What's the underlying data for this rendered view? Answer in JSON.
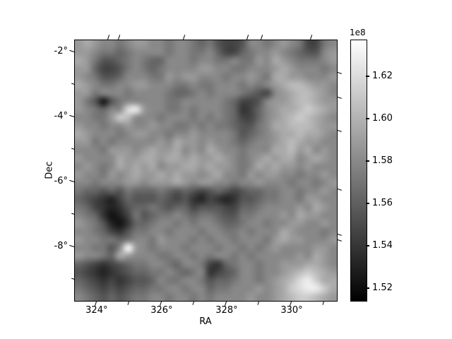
{
  "figure": {
    "background": "#ffffff"
  },
  "chart_data": {
    "type": "heatmap",
    "title": "",
    "xlabel": "RA",
    "ylabel": "Dec",
    "grid_on": false,
    "x_axis": {
      "tick_labels": [
        "324°",
        "326°",
        "328°",
        "330°"
      ],
      "tick_values": [
        324,
        326,
        328,
        330
      ],
      "minor_tick_values": [
        325,
        327,
        329,
        331
      ],
      "range": [
        323.33,
        331.39
      ],
      "unit": "deg RA"
    },
    "y_axis": {
      "tick_labels": [
        "-2°",
        "-4°",
        "-6°",
        "-8°"
      ],
      "tick_values": [
        -2,
        -4,
        -6,
        -8
      ],
      "minor_tick_values": [
        -3,
        -5,
        -7,
        -9
      ],
      "range": [
        -9.67,
        -1.65
      ],
      "unit": "deg Dec"
    },
    "colorbar": {
      "offset_label": "1e8",
      "tick_labels": [
        "1.62",
        "1.60",
        "1.58",
        "1.56",
        "1.54",
        "1.52"
      ],
      "tick_values_1e8": [
        1.62,
        1.6,
        1.58,
        1.56,
        1.54,
        1.52
      ],
      "vmin_1e8": 1.514,
      "vmax_1e8": 1.637,
      "colormap": "gray",
      "label_side": "right"
    },
    "values_grid": {
      "rows": 32,
      "cols": 32,
      "encoding": "one hex digit per cell, 0-15; value_1e8 = vmin_1e8 + d/15*(vmax_1e8-vmin_1e8); row 0 = top (Dec -1.65°), col 0 = left (RA 323.33°)",
      "data": [
        "9a988789988788767544588789874478",
        "99877678888788778644678898765589",
        "a975567876688878877877 98a9877789",
        "996445787678888998877888 9a988878",
        "9875568887798998887889 87aa998889",
        "a9877889988877877888787 89abba998",
        "997888788887667878887654 89abba98",
        "975157888887788888764458 99abba99",
        "987688de98877878887634689aabcba9",
        "88779cb888788878787644689abcba98",
        "988788988988778787765578aabbba99",
        "a98887899887889888875678 9aabaa98",
        "997878888898a998988767889aba9988",
        "888799989a99a898a9887888aab9a898",
        "98888a99aa9aa9a99a98789a9aa89a98",
        "89878a9a9a899aa9a99878a9a9989888",
        "9887989a99a9a9989a88798998878898",
        "887888998999a98998878898 88788789",
        "76656576667656545654566778878898",
        "65432465556545324323556778879988",
        "76432356676566455544667888898a98",
        "87631247567787677655778 8898a9988",
        "98752136678878788766788788998898",
        "887643577887888788778788 8a988878",
        "988776788798887878878887 9a998889",
        "887758f98788878887887878 98888998",
        "98876a988877887878878788 88898a98",
        "654345677887688743678878 8999aa98",
        "543234566778767834568878 89abcba9",
        "654343455687788756678878 9abdecaa",
        "765454566778878867788898 9acdeeca",
        "876565677887887878888988 9abccba9"
      ]
    }
  }
}
